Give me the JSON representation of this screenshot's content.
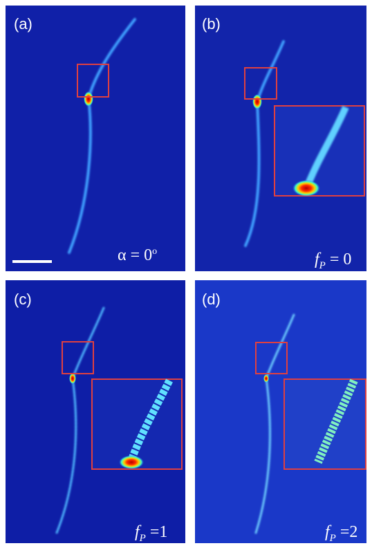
{
  "panels": [
    {
      "label": "(a)",
      "caption": {
        "main": "α = 0",
        "sup": "o"
      }
    },
    {
      "label": "(b)",
      "caption": {
        "symbol": "f",
        "sub": "P",
        "rest": " = 0"
      }
    },
    {
      "label": "(c)",
      "caption": {
        "symbol": "f",
        "sub": "P",
        "rest": " =1"
      }
    },
    {
      "label": "(d)",
      "caption": {
        "symbol": "f",
        "sub": "P",
        "rest": " =2"
      }
    }
  ]
}
